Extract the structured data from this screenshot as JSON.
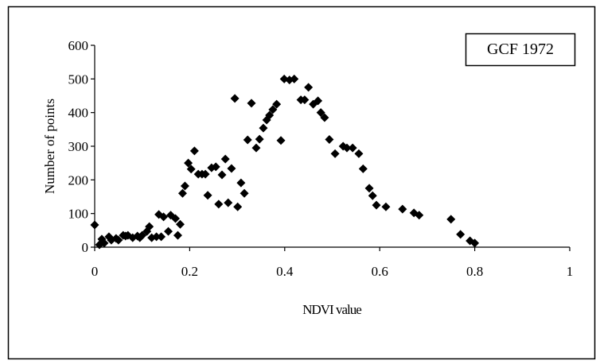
{
  "chart_data": {
    "type": "scatter",
    "annotation": "GCF 1972",
    "x_label": "NDVI value",
    "y_label": "Number of points",
    "color": "#000000",
    "xlim": [
      0,
      1
    ],
    "xticks": [
      0,
      0.2,
      0.4,
      0.6,
      0.8,
      1
    ],
    "ylim": [
      0,
      600
    ],
    "yticks": [
      0,
      100,
      200,
      300,
      400,
      500,
      600
    ],
    "x": [
      0,
      0.01,
      0.015,
      0.02,
      0.03,
      0.035,
      0.045,
      0.05,
      0.06,
      0.065,
      0.07,
      0.08,
      0.09,
      0.095,
      0.1,
      0.11,
      0.115,
      0.12,
      0.13,
      0.135,
      0.14,
      0.145,
      0.155,
      0.16,
      0.17,
      0.175,
      0.18,
      0.185,
      0.19,
      0.197,
      0.203,
      0.21,
      0.218,
      0.226,
      0.233,
      0.238,
      0.246,
      0.255,
      0.261,
      0.268,
      0.275,
      0.281,
      0.288,
      0.295,
      0.301,
      0.308,
      0.315,
      0.322,
      0.33,
      0.34,
      0.347,
      0.355,
      0.362,
      0.368,
      0.375,
      0.383,
      0.392,
      0.399,
      0.41,
      0.42,
      0.434,
      0.442,
      0.45,
      0.46,
      0.47,
      0.476,
      0.484,
      0.494,
      0.506,
      0.523,
      0.531,
      0.543,
      0.556,
      0.565,
      0.578,
      0.585,
      0.593,
      0.613,
      0.648,
      0.672,
      0.683,
      0.75,
      0.77,
      0.79,
      0.8
    ],
    "values": [
      66,
      7,
      24,
      12,
      31,
      21,
      26,
      21,
      35,
      33,
      35,
      28,
      33,
      28,
      35,
      47,
      61,
      28,
      31,
      97,
      31,
      90,
      47,
      95,
      85,
      35,
      68,
      160,
      182,
      250,
      232,
      286,
      217,
      217,
      217,
      154,
      236,
      239,
      128,
      215,
      262,
      132,
      234,
      442,
      120,
      191,
      160,
      319,
      428,
      295,
      321,
      354,
      378,
      392,
      409,
      425,
      317,
      500,
      497,
      500,
      438,
      438,
      475,
      425,
      435,
      400,
      385,
      320,
      278,
      300,
      295,
      295,
      278,
      233,
      175,
      153,
      125,
      120,
      113,
      102,
      95,
      83,
      38,
      19,
      12
    ]
  }
}
